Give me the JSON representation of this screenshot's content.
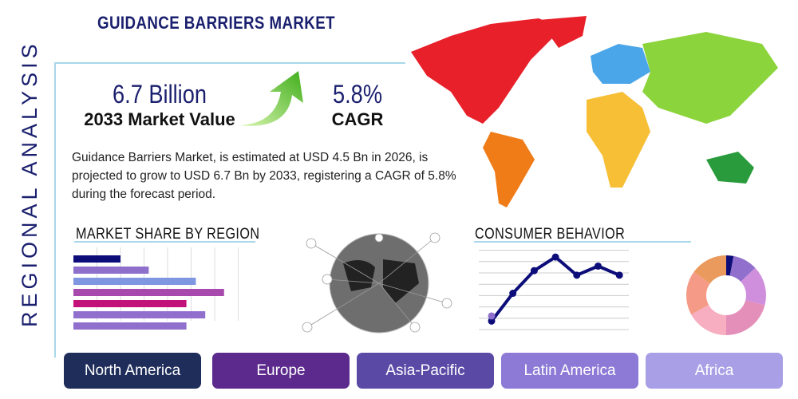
{
  "header": {
    "title": "GUIDANCE BARRIERS MARKET",
    "side_title": "REGIONAL ANALYSIS"
  },
  "stats": {
    "market_value": "6.7 Billion",
    "market_value_label": "2033 Market Value",
    "cagr": "5.8%",
    "cagr_label": "CAGR"
  },
  "description": "Guidance Barriers Market, is estimated at USD 4.5 Bn in 2026, is projected to grow to USD 6.7 Bn by 2033, registering a CAGR of 5.8% during the forecast period.",
  "sections": {
    "market_share": "MARKET SHARE BY REGION",
    "consumer": "CONSUMER BEHAVIOR"
  },
  "regions": [
    {
      "label": "North America",
      "color": "#1e2d5a"
    },
    {
      "label": "Europe",
      "color": "#5b2a8c"
    },
    {
      "label": "Asia-Pacific",
      "color": "#5a4aa6"
    },
    {
      "label": "Latin America",
      "color": "#8c7ad6"
    },
    {
      "label": "Africa",
      "color": "#a89fe6"
    }
  ],
  "chart_data": [
    {
      "type": "bar",
      "orientation": "horizontal",
      "values": [
        2.0,
        3.2,
        5.2,
        6.4,
        4.8,
        5.6,
        4.8
      ],
      "colors": [
        "#0d0d7a",
        "#8e6fcc",
        "#7f96e0",
        "#a84aad",
        "#c2127a",
        "#9070cc",
        "#9070cc"
      ],
      "xlim": [
        0,
        7
      ],
      "grid": true
    },
    {
      "type": "line",
      "values": [
        0.75,
        3.2,
        5.2,
        6.4,
        4.8,
        5.6,
        4.8
      ],
      "extra_point": 1.2,
      "ylim": [
        0,
        7
      ],
      "grid": true,
      "color": "#0d0d7a"
    },
    {
      "type": "pie",
      "donut": true,
      "values": [
        3,
        10,
        16,
        21,
        17,
        18,
        15
      ],
      "colors": [
        "#0d0d7a",
        "#9070cc",
        "#cf8fdc",
        "#e48fba",
        "#f6aec0",
        "#f49a86",
        "#e99a5c"
      ]
    }
  ]
}
